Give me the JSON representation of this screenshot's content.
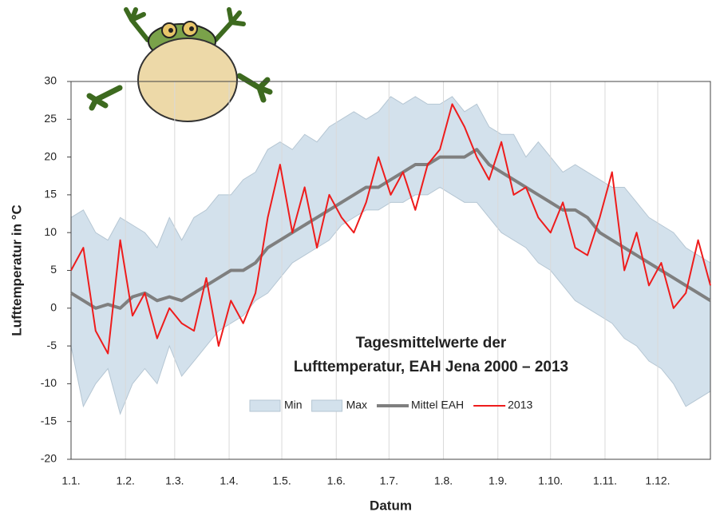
{
  "chart_data": {
    "type": "line",
    "ylabel": "Lufttemperatur in °C",
    "xlabel": "Datum",
    "annotation": [
      "Tagesmittelwerte der",
      "Lufttemperatur, EAH Jena 2000 – 2013"
    ],
    "x": [
      1,
      8,
      15,
      22,
      29,
      36,
      43,
      50,
      57,
      64,
      71,
      78,
      85,
      92,
      99,
      106,
      113,
      120,
      127,
      134,
      141,
      148,
      155,
      162,
      169,
      176,
      183,
      190,
      197,
      204,
      211,
      218,
      225,
      232,
      239,
      246,
      253,
      260,
      267,
      274,
      281,
      288,
      295,
      302,
      309,
      316,
      323,
      330,
      337,
      344,
      351,
      358,
      365
    ],
    "xlim": [
      1,
      365
    ],
    "xticks": [
      {
        "value": 1,
        "label": "1.1."
      },
      {
        "value": 32,
        "label": "1.2."
      },
      {
        "value": 60,
        "label": "1.3."
      },
      {
        "value": 91,
        "label": "1.4."
      },
      {
        "value": 121,
        "label": "1.5."
      },
      {
        "value": 152,
        "label": "1.6."
      },
      {
        "value": 182,
        "label": "1.7."
      },
      {
        "value": 213,
        "label": "1.8."
      },
      {
        "value": 244,
        "label": "1.9."
      },
      {
        "value": 274,
        "label": "1.10."
      },
      {
        "value": 305,
        "label": "1.11."
      },
      {
        "value": 335,
        "label": "1.12."
      }
    ],
    "ylim": [
      -20,
      30
    ],
    "yticks": [
      -20,
      -15,
      -10,
      -5,
      0,
      5,
      10,
      15,
      20,
      25,
      30
    ],
    "series": [
      {
        "name": "Min",
        "style": "band-low",
        "color": "#d3e1ec",
        "values": [
          -5,
          -13,
          -10,
          -8,
          -14,
          -10,
          -8,
          -10,
          -5,
          -9,
          -7,
          -5,
          -3,
          -2,
          -1,
          1,
          2,
          4,
          6,
          7,
          8,
          9,
          11,
          12,
          13,
          13,
          14,
          14,
          15,
          15,
          16,
          15,
          14,
          14,
          12,
          10,
          9,
          8,
          6,
          5,
          3,
          1,
          0,
          -1,
          -2,
          -4,
          -5,
          -7,
          -8,
          -10,
          -13,
          -12,
          -11
        ]
      },
      {
        "name": "Max",
        "style": "band-high",
        "color": "#d3e1ec",
        "values": [
          12,
          13,
          10,
          9,
          12,
          11,
          10,
          8,
          12,
          9,
          12,
          13,
          15,
          15,
          17,
          18,
          21,
          22,
          21,
          23,
          22,
          24,
          25,
          26,
          25,
          26,
          28,
          27,
          28,
          27,
          27,
          28,
          26,
          27,
          24,
          23,
          23,
          20,
          22,
          20,
          18,
          19,
          18,
          17,
          16,
          16,
          14,
          12,
          11,
          10,
          8,
          7,
          6
        ]
      },
      {
        "name": "Mittel EAH",
        "style": "line",
        "color": "#7f7f7f",
        "values": [
          2,
          1,
          0,
          0.5,
          0,
          1.5,
          2,
          1,
          1.5,
          1,
          2,
          3,
          4,
          5,
          5,
          6,
          8,
          9,
          10,
          11,
          12,
          13,
          14,
          15,
          16,
          16,
          17,
          18,
          19,
          19,
          20,
          20,
          20,
          21,
          19,
          18,
          17,
          16,
          15,
          14,
          13,
          13,
          12,
          10,
          9,
          8,
          7,
          6,
          5,
          4,
          3,
          2,
          1
        ]
      },
      {
        "name": "2013",
        "style": "line",
        "color": "#ee1c1c",
        "values": [
          5,
          8,
          -3,
          -6,
          9,
          -1,
          2,
          -4,
          0,
          -2,
          -3,
          4,
          -5,
          1,
          -2,
          2,
          12,
          19,
          10,
          16,
          8,
          15,
          12,
          10,
          14,
          20,
          15,
          18,
          13,
          19,
          21,
          27,
          24,
          20,
          17,
          22,
          15,
          16,
          12,
          10,
          14,
          8,
          7,
          12,
          18,
          5,
          10,
          3,
          6,
          0,
          2,
          9,
          3
        ]
      }
    ]
  }
}
